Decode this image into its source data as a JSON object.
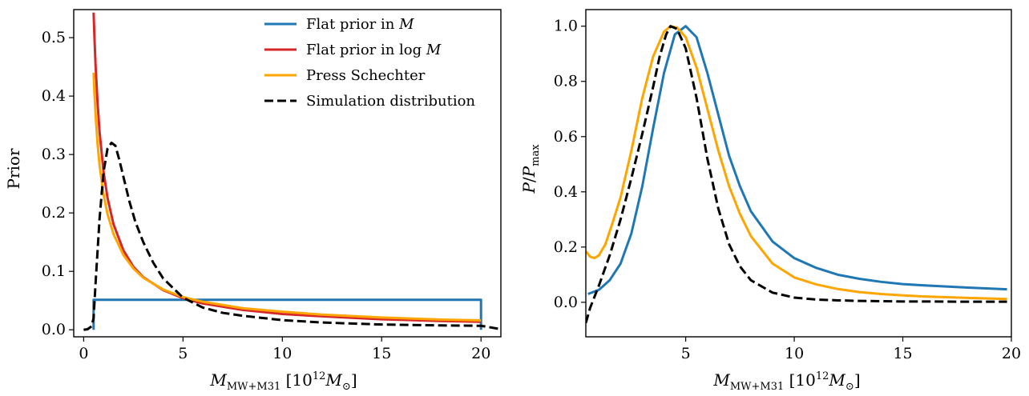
{
  "chart_data": [
    {
      "type": "line",
      "ylabel": "Prior",
      "xlabel": "M_MW+M31 [10^12 M_sun]",
      "xlim": [
        -0.5,
        21
      ],
      "ylim": [
        -0.012,
        0.548
      ],
      "xticks": [
        0,
        5,
        10,
        15,
        20
      ],
      "yticks": [
        0.0,
        0.1,
        0.2,
        0.3,
        0.4,
        0.5
      ],
      "ytick_labels": [
        "0.0",
        "0.1",
        "0.2",
        "0.3",
        "0.4",
        "0.5"
      ],
      "grid": false,
      "legend": {
        "position": "top-right",
        "entries": [
          {
            "text": "Flat prior in ",
            "math": "M"
          },
          {
            "text": "Flat prior in log ",
            "math": "M"
          },
          {
            "text": "Press Schechter",
            "math": ""
          },
          {
            "text": "Simulation distribution",
            "math": ""
          }
        ]
      },
      "series": [
        {
          "color": "#1f77b4",
          "dash": "solid",
          "x": [
            0.5,
            0.5,
            20.0,
            20.0
          ],
          "y": [
            0.0,
            0.0513,
            0.0513,
            0.0
          ]
        },
        {
          "color": "#d62728",
          "dash": "solid",
          "x": [
            0.5,
            0.55,
            0.6,
            0.7,
            0.8,
            1.0,
            1.2,
            1.5,
            2.0,
            2.5,
            3.0,
            4.0,
            5.0,
            6.0,
            8.0,
            10.0,
            12.0,
            15.0,
            18.0,
            20.0
          ],
          "y": [
            0.543,
            0.494,
            0.452,
            0.388,
            0.339,
            0.271,
            0.226,
            0.181,
            0.136,
            0.108,
            0.09,
            0.068,
            0.054,
            0.045,
            0.034,
            0.027,
            0.023,
            0.018,
            0.015,
            0.0136
          ]
        },
        {
          "color": "#ffa500",
          "dash": "solid",
          "x": [
            0.5,
            0.55,
            0.6,
            0.7,
            0.8,
            1.0,
            1.2,
            1.5,
            2.0,
            2.5,
            3.0,
            4.0,
            5.0,
            6.0,
            8.0,
            10.0,
            12.0,
            15.0,
            18.0,
            20.0
          ],
          "y": [
            0.44,
            0.4,
            0.368,
            0.318,
            0.282,
            0.232,
            0.198,
            0.164,
            0.128,
            0.105,
            0.089,
            0.069,
            0.056,
            0.048,
            0.037,
            0.031,
            0.026,
            0.021,
            0.0175,
            0.016
          ]
        },
        {
          "color": "#000000",
          "dash": "dashed",
          "x": [
            0.0,
            0.2,
            0.4,
            0.5,
            0.6,
            0.8,
            1.0,
            1.2,
            1.4,
            1.6,
            1.8,
            2.0,
            2.3,
            2.6,
            3.0,
            3.5,
            4.0,
            5.0,
            6.0,
            7.0,
            8.0,
            10.0,
            12.0,
            15.0,
            18.0,
            20.0,
            20.5,
            21.0
          ],
          "y": [
            0.0,
            0.001,
            0.006,
            0.02,
            0.08,
            0.19,
            0.27,
            0.31,
            0.32,
            0.315,
            0.29,
            0.262,
            0.22,
            0.185,
            0.15,
            0.115,
            0.088,
            0.055,
            0.038,
            0.029,
            0.024,
            0.0165,
            0.0125,
            0.009,
            0.0075,
            0.0068,
            0.004,
            0.001
          ]
        }
      ]
    },
    {
      "type": "line",
      "ylabel": "P/P_max",
      "xlabel": "M_MW+M31 [10^12 M_sun]",
      "xlim": [
        0.4,
        20
      ],
      "ylim": [
        -0.125,
        1.06
      ],
      "xticks": [
        5,
        10,
        15,
        20
      ],
      "yticks": [
        0.0,
        0.2,
        0.4,
        0.6,
        0.8,
        1.0
      ],
      "ytick_labels": [
        "0.0",
        "0.2",
        "0.4",
        "0.6",
        "0.8",
        "1.0"
      ],
      "grid": false,
      "series": [
        {
          "color": "#1f77b4",
          "dash": "solid",
          "x": [
            0.5,
            1.0,
            1.5,
            2.0,
            2.5,
            3.0,
            3.5,
            4.0,
            4.5,
            5.0,
            5.5,
            6.0,
            6.5,
            7.0,
            7.5,
            8.0,
            9.0,
            10.0,
            11.0,
            12.0,
            13.0,
            14.0,
            15.0,
            16.0,
            18.0,
            19.8
          ],
          "y": [
            0.03,
            0.045,
            0.08,
            0.14,
            0.25,
            0.42,
            0.63,
            0.83,
            0.97,
            1.0,
            0.96,
            0.83,
            0.68,
            0.53,
            0.42,
            0.33,
            0.22,
            0.16,
            0.125,
            0.1,
            0.085,
            0.074,
            0.066,
            0.061,
            0.053,
            0.047
          ]
        },
        {
          "color": "#ffa500",
          "dash": "solid",
          "x": [
            0.4,
            0.6,
            0.8,
            1.0,
            1.3,
            1.6,
            2.0,
            2.5,
            3.0,
            3.5,
            4.0,
            4.3,
            4.6,
            5.0,
            5.5,
            6.0,
            6.5,
            7.0,
            7.5,
            8.0,
            9.0,
            10.0,
            11.0,
            12.0,
            13.0,
            14.0,
            15.0,
            16.0,
            18.0,
            19.8
          ],
          "y": [
            0.185,
            0.165,
            0.16,
            0.17,
            0.21,
            0.28,
            0.38,
            0.55,
            0.74,
            0.89,
            0.98,
            1.0,
            0.995,
            0.96,
            0.85,
            0.7,
            0.55,
            0.42,
            0.32,
            0.24,
            0.14,
            0.09,
            0.065,
            0.048,
            0.037,
            0.03,
            0.025,
            0.021,
            0.016,
            0.012
          ]
        },
        {
          "color": "#000000",
          "dash": "dashed",
          "x": [
            0.4,
            0.6,
            0.8,
            1.0,
            1.5,
            2.0,
            2.5,
            3.0,
            3.5,
            3.8,
            4.1,
            4.3,
            4.6,
            5.0,
            5.5,
            6.0,
            6.5,
            7.0,
            7.5,
            8.0,
            9.0,
            10.0,
            11.0,
            12.0,
            13.0,
            14.0,
            15.0,
            16.0,
            18.0,
            19.8
          ],
          "y": [
            -0.075,
            -0.02,
            0.02,
            0.06,
            0.17,
            0.3,
            0.45,
            0.61,
            0.78,
            0.89,
            0.97,
            1.0,
            0.99,
            0.92,
            0.74,
            0.52,
            0.34,
            0.21,
            0.13,
            0.08,
            0.035,
            0.017,
            0.01,
            0.007,
            0.005,
            0.004,
            0.003,
            0.003,
            0.002,
            0.002
          ]
        }
      ]
    }
  ]
}
